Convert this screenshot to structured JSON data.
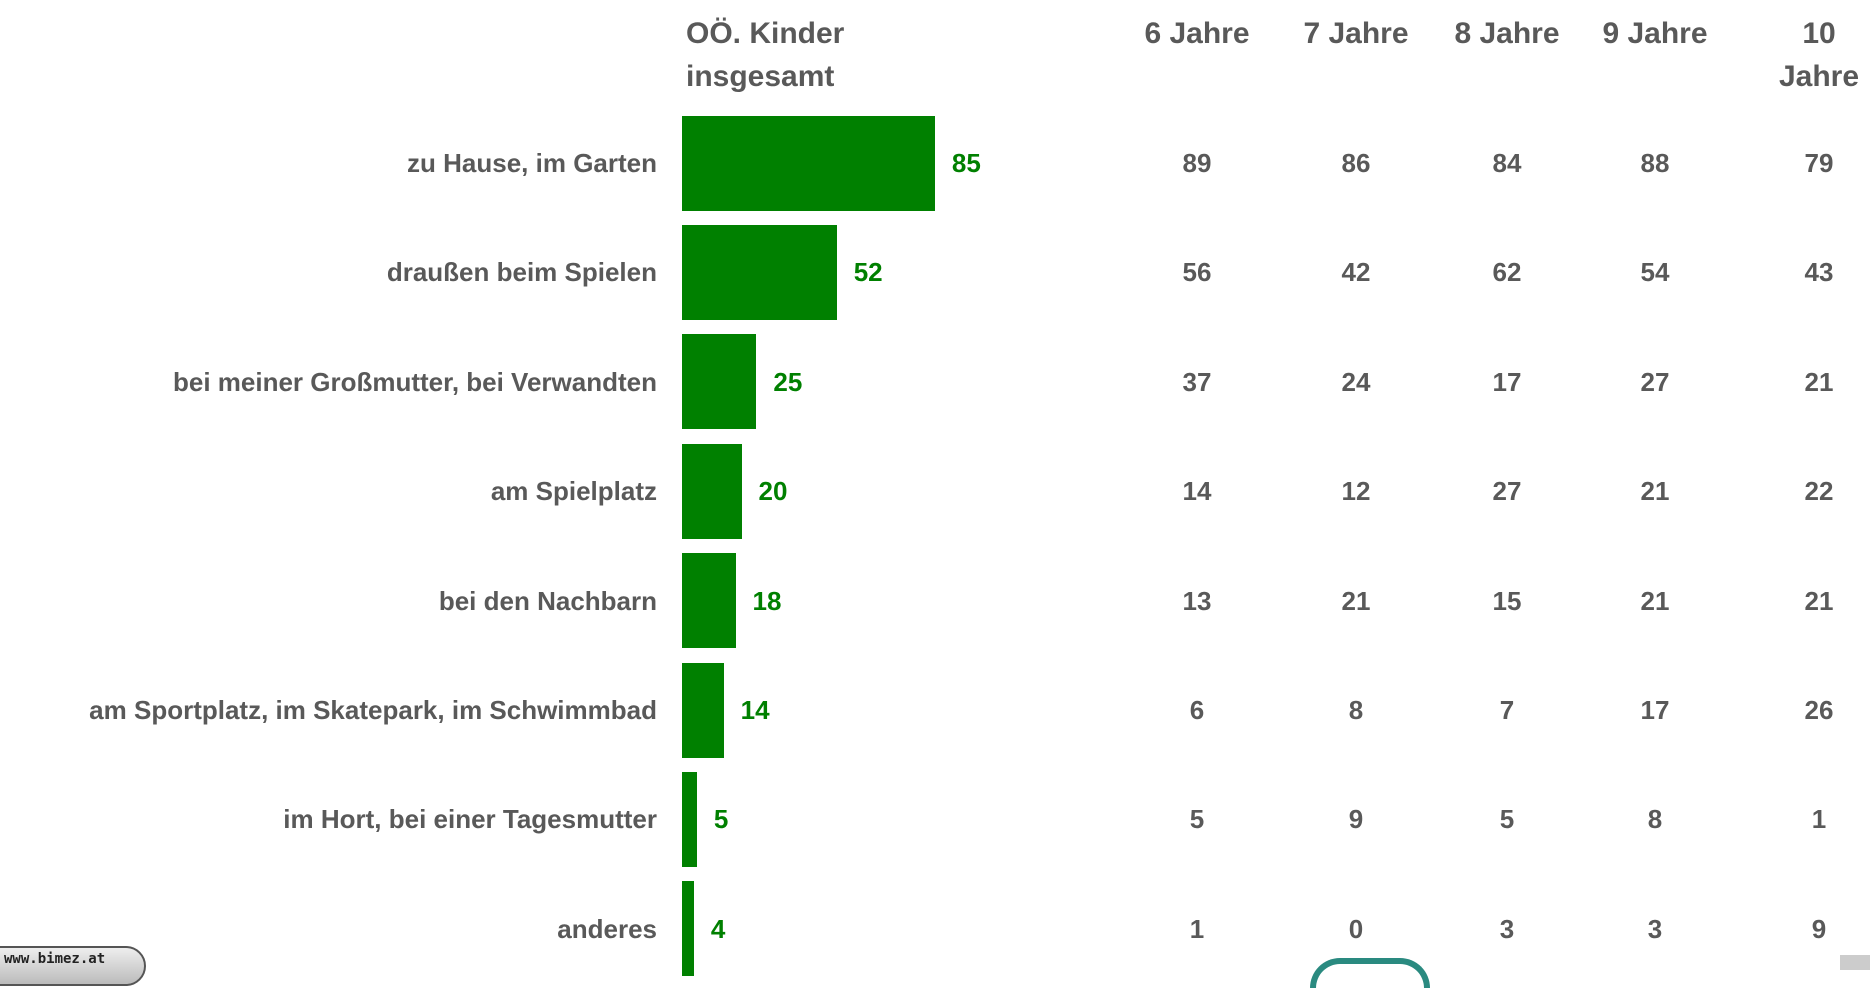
{
  "chart_data": {
    "type": "bar",
    "categories": [
      "zu Hause, im Garten",
      "draußen beim Spielen",
      "bei meiner Großmutter, bei Verwandten",
      "am Spielplatz",
      "bei den Nachbarn",
      "am Sportplatz, im Skatepark, im Schwimmbad",
      "im Hort, bei einer Tagesmutter",
      "anderes"
    ],
    "series": [
      {
        "name": "OÖ. Kinder insgesamt",
        "color": "#008000",
        "values": [
          85,
          52,
          25,
          20,
          18,
          14,
          5,
          4
        ]
      }
    ]
  },
  "table": {
    "columns": [
      "6 Jahre",
      "7 Jahre",
      "8 Jahre",
      "9 Jahre",
      "10 Jahre"
    ],
    "rows": [
      [
        89,
        86,
        84,
        88,
        79
      ],
      [
        56,
        42,
        62,
        54,
        43
      ],
      [
        37,
        24,
        17,
        27,
        21
      ],
      [
        14,
        12,
        27,
        21,
        22
      ],
      [
        13,
        21,
        15,
        21,
        21
      ],
      [
        6,
        8,
        7,
        17,
        26
      ],
      [
        5,
        9,
        5,
        8,
        1
      ],
      [
        1,
        0,
        3,
        3,
        9
      ]
    ]
  },
  "footer": {
    "url": "www.bimez.at"
  }
}
